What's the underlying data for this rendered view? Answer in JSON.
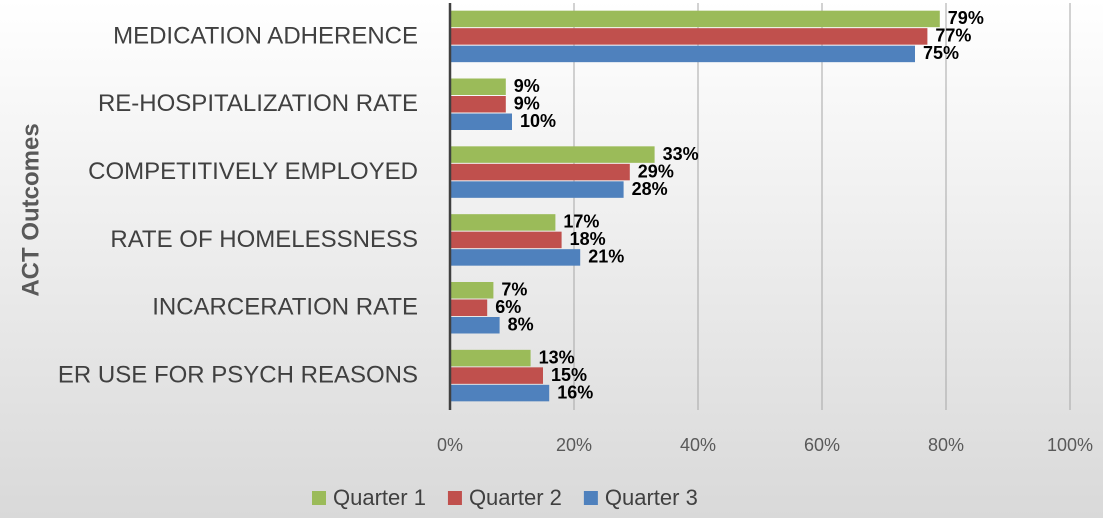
{
  "chart_data": {
    "type": "bar",
    "orientation": "horizontal",
    "y_axis_label": "ACT Outcomes",
    "categories": [
      "MEDICATION ADHERENCE",
      "RE-HOSPITALIZATION RATE",
      "COMPETITIVELY EMPLOYED",
      "RATE OF HOMELESSNESS",
      "INCARCERATION RATE",
      "ER USE FOR PSYCH REASONS"
    ],
    "series": [
      {
        "name": "Quarter 1",
        "color": "#9bbb59",
        "values": [
          79,
          9,
          33,
          17,
          7,
          13
        ],
        "value_labels": [
          "79%",
          "9%",
          "33%",
          "17%",
          "7%",
          "13%"
        ]
      },
      {
        "name": "Quarter 2",
        "color": "#c0504d",
        "values": [
          77,
          9,
          29,
          18,
          6,
          15
        ],
        "value_labels": [
          "77%",
          "9%",
          "29%",
          "18%",
          "6%",
          "15%"
        ]
      },
      {
        "name": "Quarter 3",
        "color": "#4f81bd",
        "values": [
          75,
          10,
          28,
          21,
          8,
          16
        ],
        "value_labels": [
          "75%",
          "10%",
          "28%",
          "21%",
          "8%",
          "16%"
        ]
      }
    ],
    "xlim": [
      0,
      100
    ],
    "xticks": [
      {
        "value": 0,
        "label": "0%"
      },
      {
        "value": 20,
        "label": "20%"
      },
      {
        "value": 40,
        "label": "40%"
      },
      {
        "value": 60,
        "label": "60%"
      },
      {
        "value": 80,
        "label": "80%"
      },
      {
        "value": 100,
        "label": "100%"
      }
    ],
    "grid": true,
    "legend": "bottom"
  }
}
